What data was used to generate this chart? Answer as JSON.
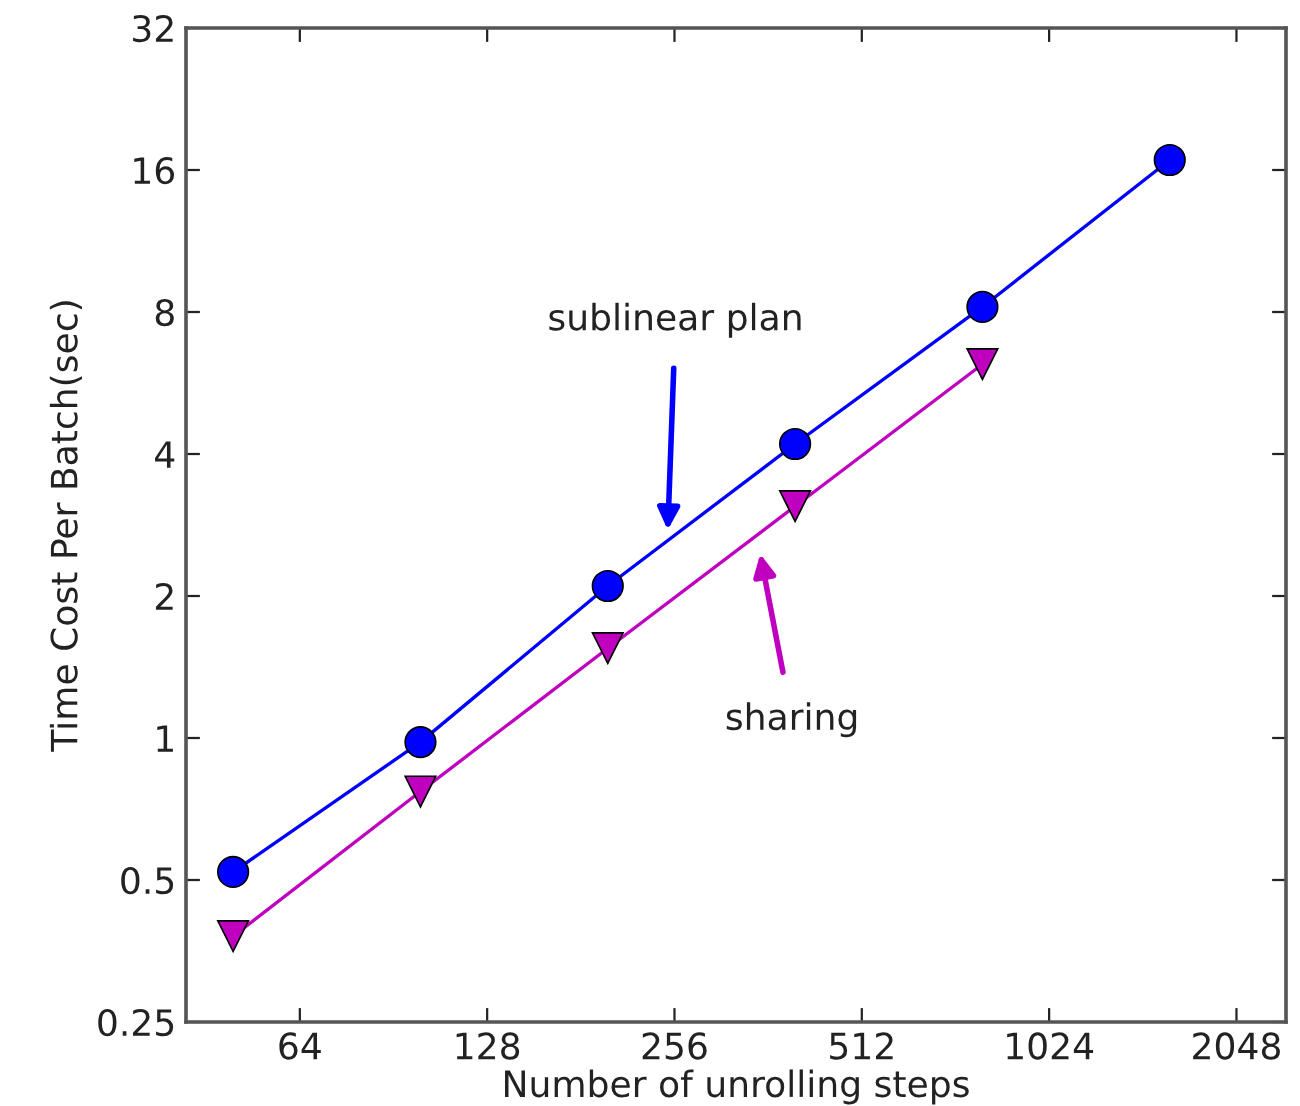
{
  "chart_data": {
    "type": "line",
    "xlabel": "Number of unrolling steps",
    "ylabel": "Time Cost Per Batch(sec)",
    "log": "xy",
    "grid": false,
    "legend": false,
    "x": [
      50,
      100,
      200,
      400,
      800,
      1600
    ],
    "series": [
      {
        "color": "#0000ff",
        "marker": "circle",
        "values": [
          0.52,
          0.98,
          2.1,
          4.2,
          8.2,
          16.8
        ]
      },
      {
        "color": "#bf00bf",
        "marker": "triangle",
        "x": [
          50,
          100,
          200,
          400,
          800
        ],
        "values": [
          0.38,
          0.77,
          1.55,
          3.1,
          6.2
        ]
      }
    ],
    "xlim": [
      42,
      2460
    ],
    "xticks": [
      64,
      128,
      256,
      512,
      1024,
      2048
    ],
    "ylim": [
      0.25,
      32
    ],
    "yticks": [
      0.25,
      0.5,
      1,
      2,
      4,
      8,
      16,
      32
    ],
    "annotations": [
      "sublinear plan",
      "sharing"
    ]
  }
}
